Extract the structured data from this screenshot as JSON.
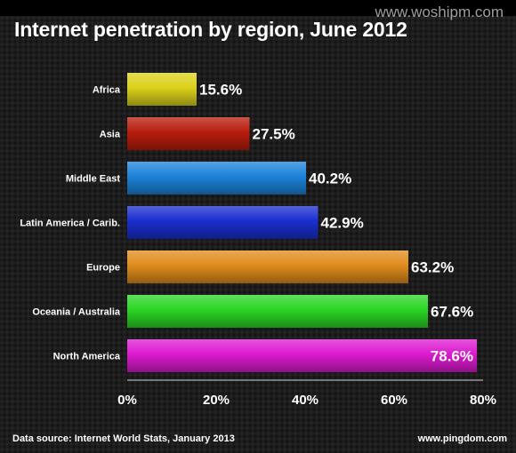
{
  "watermark": "www.woshipm.com",
  "footer": {
    "source": "Data source: Internet World Stats, January 2013",
    "site": "www.pingdom.com"
  },
  "chart_data": {
    "type": "bar",
    "orientation": "horizontal",
    "title": "Internet penetration by region, June 2012",
    "categories": [
      "Africa",
      "Asia",
      "Middle East",
      "Latin America / Carib.",
      "Europe",
      "Oceania / Australia",
      "North America"
    ],
    "values": [
      15.6,
      27.5,
      40.2,
      42.9,
      63.2,
      67.6,
      78.6
    ],
    "value_labels": [
      "15.6%",
      "27.5%",
      "40.2%",
      "42.9%",
      "63.2%",
      "67.6%",
      "78.6%"
    ],
    "colors": [
      "#dcd21a",
      "#b81c0c",
      "#1c82d8",
      "#1a2ed0",
      "#e08c1c",
      "#2ad624",
      "#dc1ad0"
    ],
    "xlim": [
      0,
      80
    ],
    "x_ticks": [
      0,
      20,
      40,
      60,
      80
    ],
    "x_tick_labels": [
      "0%",
      "20%",
      "40%",
      "60%",
      "80%"
    ],
    "grid": false,
    "legend": "none"
  }
}
